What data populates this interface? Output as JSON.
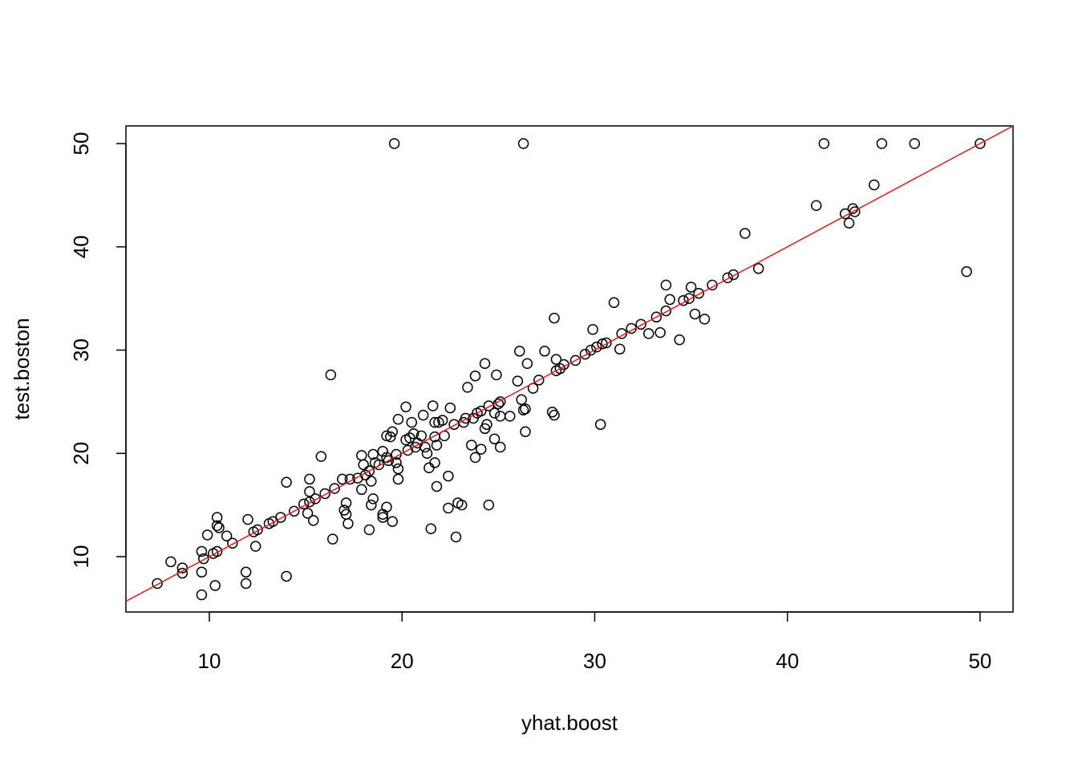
{
  "chart_data": {
    "type": "scatter",
    "xlabel": "yhat.boost",
    "ylabel": "test.boston",
    "x": [
      7.3,
      8.0,
      8.6,
      8.6,
      9.6,
      9.6,
      9.6,
      9.7,
      9.9,
      10.2,
      10.3,
      10.4,
      10.4,
      10.4,
      10.5,
      10.9,
      11.2,
      11.9,
      11.9,
      12.0,
      12.3,
      12.4,
      12.5,
      13.1,
      13.3,
      13.7,
      14.0,
      14.0,
      14.4,
      14.9,
      15.1,
      15.2,
      15.2,
      15.2,
      15.4,
      15.5,
      15.8,
      16.0,
      16.3,
      16.4,
      16.5,
      16.9,
      17.0,
      17.1,
      17.1,
      17.2,
      17.3,
      17.7,
      17.9,
      17.9,
      18.0,
      18.1,
      18.3,
      18.3,
      18.4,
      18.4,
      18.5,
      18.5,
      18.6,
      18.8,
      19.0,
      19.0,
      19.0,
      19.2,
      19.2,
      19.2,
      19.3,
      19.4,
      19.5,
      19.5,
      19.6,
      19.7,
      19.7,
      19.8,
      19.8,
      19.8,
      20.2,
      20.2,
      20.3,
      20.4,
      20.5,
      20.6,
      20.7,
      20.8,
      21.0,
      21.1,
      21.2,
      21.3,
      21.4,
      21.5,
      21.6,
      21.7,
      21.7,
      21.7,
      21.8,
      21.8,
      21.9,
      22.1,
      22.2,
      22.4,
      22.4,
      22.5,
      22.7,
      22.8,
      22.9,
      23.1,
      23.2,
      23.3,
      23.4,
      23.6,
      23.7,
      23.8,
      23.8,
      23.9,
      24.1,
      24.1,
      24.3,
      24.3,
      24.4,
      24.5,
      24.5,
      24.8,
      24.8,
      24.9,
      25.0,
      25.1,
      25.1,
      25.1,
      25.6,
      26.0,
      26.1,
      26.2,
      26.3,
      26.3,
      26.4,
      26.4,
      26.5,
      26.8,
      27.1,
      27.4,
      27.8,
      27.9,
      27.9,
      28.0,
      28.0,
      28.2,
      28.4,
      29.0,
      29.5,
      29.8,
      29.9,
      30.1,
      30.3,
      30.4,
      30.6,
      31.0,
      31.3,
      31.4,
      31.9,
      32.4,
      32.8,
      33.2,
      33.4,
      33.7,
      33.7,
      33.9,
      34.4,
      34.6,
      34.9,
      35.0,
      35.2,
      35.4,
      35.7,
      36.1,
      36.9,
      37.2,
      37.8,
      38.5,
      41.5,
      41.9,
      43.0,
      43.2,
      43.4,
      43.5,
      44.5,
      44.9,
      46.6,
      49.3,
      50.0
    ],
    "y": [
      7.4,
      9.5,
      8.9,
      8.4,
      6.3,
      8.5,
      10.5,
      9.8,
      12.1,
      10.3,
      7.2,
      10.5,
      13.8,
      13.0,
      12.8,
      12.0,
      11.3,
      7.4,
      8.5,
      13.6,
      12.4,
      11.0,
      12.6,
      13.2,
      13.4,
      13.8,
      8.1,
      17.2,
      14.4,
      15.1,
      14.2,
      16.3,
      17.5,
      15.3,
      13.5,
      15.6,
      19.7,
      16.1,
      27.6,
      11.7,
      16.6,
      17.5,
      14.5,
      14.1,
      15.2,
      13.2,
      17.5,
      17.6,
      16.5,
      19.8,
      18.9,
      17.9,
      18.3,
      12.6,
      15.0,
      17.3,
      15.6,
      19.9,
      19.1,
      18.9,
      13.8,
      14.1,
      20.2,
      21.7,
      19.6,
      14.8,
      19.3,
      21.6,
      13.4,
      22.1,
      50,
      19.9,
      19.1,
      17.5,
      18.5,
      23.3,
      21.3,
      24.5,
      20.3,
      21.5,
      23.0,
      21.9,
      20.6,
      21.0,
      21.7,
      23.7,
      20.6,
      20.0,
      18.6,
      12.7,
      24.6,
      23.0,
      21.6,
      19.1,
      16.8,
      20.8,
      23.0,
      23.2,
      21.7,
      17.8,
      14.7,
      24.4,
      22.8,
      11.9,
      15.2,
      15.0,
      23.0,
      23.4,
      26.4,
      20.8,
      23.4,
      27.5,
      19.6,
      23.9,
      20.4,
      24.1,
      22.4,
      28.7,
      22.8,
      24.6,
      15.0,
      21.4,
      23.9,
      27.6,
      24.8,
      23.6,
      20.6,
      25.0,
      23.6,
      27.0,
      29.9,
      25.2,
      24.2,
      50,
      24.3,
      22.1,
      28.7,
      26.3,
      27.1,
      29.9,
      24.0,
      33.1,
      23.7,
      29.1,
      28.0,
      28.2,
      28.6,
      29.0,
      29.6,
      30.0,
      32.0,
      30.3,
      22.8,
      30.6,
      30.7,
      34.6,
      30.1,
      31.6,
      32.1,
      32.5,
      31.6,
      33.2,
      31.7,
      36.3,
      33.8,
      34.9,
      31.0,
      34.8,
      35.0,
      36.1,
      33.5,
      35.5,
      33.0,
      36.3,
      37.0,
      37.3,
      41.3,
      37.9,
      44.0,
      50,
      43.2,
      42.3,
      43.7,
      43.4,
      46.0,
      50,
      50,
      37.6,
      50
    ],
    "color": "#000000",
    "reference_line": {
      "slope": 1,
      "intercept": 0,
      "color": "#e31a1c"
    },
    "xlim": [
      5.67,
      51.71
    ],
    "ylim": [
      4.64,
      51.71
    ],
    "xticks": [
      10,
      20,
      30,
      40,
      50
    ],
    "yticks": [
      10,
      20,
      30,
      40,
      50
    ]
  }
}
